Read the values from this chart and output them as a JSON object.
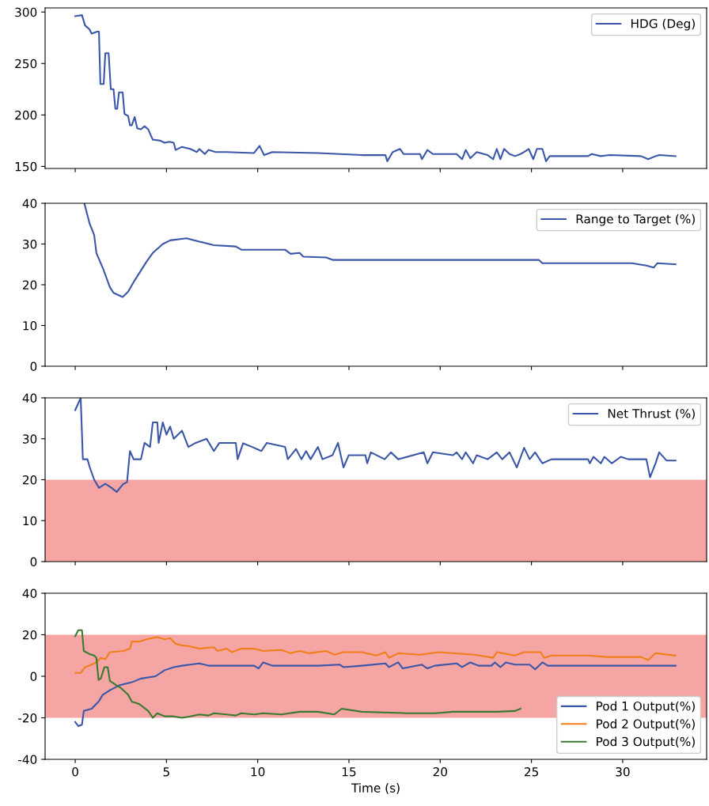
{
  "chart_data": [
    {
      "type": "line",
      "xlim": [
        -1.65,
        34.6
      ],
      "xticks": [
        0,
        5,
        10,
        15,
        20,
        25,
        30
      ],
      "ylim": [
        148,
        304
      ],
      "yticks": [
        150,
        200,
        250,
        300
      ],
      "tick_labels": "y",
      "legend": "top right",
      "grid": false,
      "series": [
        {
          "name": "HDG (Deg)",
          "color": "#3a56a8",
          "x": [
            0,
            0.37,
            0.54,
            0.79,
            0.9,
            1.2,
            1.3,
            1.38,
            1.56,
            1.65,
            1.83,
            1.95,
            2.1,
            2.2,
            2.3,
            2.4,
            2.6,
            2.7,
            2.9,
            3.0,
            3.1,
            3.26,
            3.4,
            3.6,
            3.8,
            4.0,
            4.25,
            4.67,
            4.9,
            5.16,
            5.4,
            5.5,
            5.85,
            6.3,
            6.67,
            6.8,
            7.1,
            7.3,
            7.7,
            8.3,
            9.8,
            10.1,
            10.35,
            10.8,
            13.3,
            15.7,
            17.0,
            17.1,
            17.4,
            17.8,
            18.0,
            18.9,
            19.0,
            19.3,
            19.6,
            20.9,
            21.2,
            21.4,
            21.65,
            22.0,
            22.6,
            22.9,
            23.1,
            23.3,
            23.5,
            23.8,
            24.1,
            24.4,
            24.6,
            24.85,
            25.1,
            25.3,
            25.6,
            25.8,
            26.0,
            28.1,
            28.3,
            28.8,
            29.3,
            31.0,
            31.4,
            31.8,
            32.0,
            32.9
          ],
          "values": [
            296,
            297,
            287,
            283,
            279,
            281,
            281,
            230,
            230,
            260,
            260,
            225,
            225,
            206,
            206,
            222,
            222,
            201,
            199,
            190,
            190,
            198,
            187,
            186,
            189,
            186,
            176,
            175,
            173,
            174,
            173,
            166,
            169,
            167,
            164,
            167,
            162,
            166,
            164,
            164,
            163,
            170,
            161,
            164,
            163,
            161,
            161,
            155,
            164,
            167,
            162,
            162,
            157,
            166,
            162,
            162,
            157,
            166,
            158,
            164,
            161,
            157,
            167,
            157,
            167,
            162,
            160,
            162,
            164,
            167,
            157,
            167,
            167,
            155,
            160,
            160,
            162,
            160,
            161,
            160,
            157,
            160,
            161,
            160
          ]
        }
      ]
    },
    {
      "type": "line",
      "xlim": [
        -1.65,
        34.6
      ],
      "xticks": [
        0,
        5,
        10,
        15,
        20,
        25,
        30
      ],
      "ylim": [
        0,
        40
      ],
      "yticks": [
        0,
        10,
        20,
        30,
        40
      ],
      "tick_labels": "y",
      "legend": "top right",
      "grid": false,
      "series": [
        {
          "name": "Range to Target (%)",
          "color": "#3a56a8",
          "x": [
            0.5,
            0.79,
            1.04,
            1.16,
            1.53,
            1.9,
            2.1,
            2.6,
            2.9,
            3.26,
            3.9,
            4.25,
            4.8,
            5.2,
            6.1,
            6.8,
            7.6,
            8.8,
            9.1,
            11.5,
            11.8,
            12.3,
            12.5,
            13.75,
            14.1,
            15.7,
            18.2,
            20.7,
            23.1,
            25.4,
            25.6,
            28.1,
            30.5,
            31.3,
            31.7,
            31.9,
            32.9
          ],
          "values": [
            40,
            35,
            32.2,
            27.8,
            23.9,
            19.4,
            18,
            17,
            18.3,
            21.1,
            25.6,
            27.8,
            30,
            30.9,
            31.4,
            30.6,
            29.7,
            29.4,
            28.6,
            28.6,
            27.6,
            27.8,
            26.9,
            26.7,
            26.1,
            26.1,
            26.1,
            26.1,
            26.1,
            26.1,
            25.3,
            25.3,
            25.3,
            24.7,
            24.2,
            25.3,
            25
          ]
        }
      ]
    },
    {
      "type": "line",
      "xlim": [
        -1.65,
        34.6
      ],
      "xticks": [
        0,
        5,
        10,
        15,
        20,
        25,
        30
      ],
      "ylim": [
        0,
        40
      ],
      "yticks": [
        0,
        10,
        20,
        30,
        40
      ],
      "tick_labels": "y",
      "legend": "top right",
      "grid": false,
      "bands": [
        {
          "axis": "y",
          "from": 0,
          "to": 20,
          "color": "#f6a5a5"
        }
      ],
      "series": [
        {
          "name": "Net Thrust (%)",
          "color": "#3a56a8",
          "x": [
            0,
            0.3,
            0.42,
            0.67,
            0.8,
            1.04,
            1.3,
            1.65,
            2.0,
            2.27,
            2.64,
            2.84,
            3.0,
            3.2,
            3.6,
            3.8,
            4.1,
            4.25,
            4.5,
            4.57,
            4.8,
            5.0,
            5.2,
            5.4,
            5.85,
            6.2,
            6.6,
            7.2,
            7.6,
            7.9,
            8.8,
            8.9,
            9.2,
            9.7,
            10.2,
            10.5,
            11.5,
            11.65,
            12.1,
            12.4,
            12.65,
            12.9,
            13.3,
            13.55,
            14.1,
            14.4,
            14.7,
            14.99,
            15.9,
            16.0,
            16.2,
            16.96,
            17.3,
            17.7,
            19.1,
            19.3,
            19.6,
            20.7,
            20.9,
            21.2,
            21.4,
            21.8,
            22.0,
            22.6,
            23.1,
            23.4,
            23.8,
            24.2,
            24.6,
            24.9,
            25.2,
            25.6,
            26.1,
            28.1,
            28.2,
            28.4,
            28.8,
            29.0,
            29.4,
            29.9,
            30.3,
            31.3,
            31.5,
            31.8,
            32.0,
            32.4,
            32.9
          ],
          "values": [
            37,
            40,
            25,
            25,
            23,
            20,
            18,
            19,
            18,
            17,
            19,
            19.4,
            27,
            25,
            25,
            29,
            28,
            34,
            34,
            29,
            34,
            31,
            33,
            30,
            32,
            28,
            29,
            30,
            27,
            29,
            29,
            25,
            28.9,
            28,
            27,
            29,
            28,
            25,
            27.5,
            25,
            27,
            25,
            28,
            25,
            26,
            29,
            23,
            26,
            26,
            24,
            26.7,
            25,
            26.7,
            25,
            26.7,
            24,
            26.7,
            26,
            26.7,
            25,
            26.7,
            24,
            26,
            25,
            26.7,
            25,
            26.7,
            23,
            27.8,
            25,
            26.7,
            24,
            25,
            25,
            24,
            25.6,
            24,
            25.6,
            24,
            25.6,
            25,
            25,
            20.6,
            24,
            26.7,
            24.7,
            24.7
          ]
        }
      ]
    },
    {
      "type": "line",
      "xlim": [
        -1.65,
        34.6
      ],
      "xticks": [
        0,
        5,
        10,
        15,
        20,
        25,
        30
      ],
      "ylim": [
        -40,
        40
      ],
      "yticks": [
        -40,
        -20,
        0,
        20,
        40
      ],
      "xlabel": "Time (s)",
      "legend": "bottom right",
      "grid": false,
      "bands": [
        {
          "axis": "y",
          "from": -20,
          "to": 20,
          "color": "#f6a5a5"
        }
      ],
      "series": [
        {
          "name": "Pod 1 Output(%)",
          "color": "#3a56a8",
          "x": [
            0,
            0.17,
            0.37,
            0.47,
            0.9,
            1.3,
            1.5,
            1.9,
            2.4,
            3.1,
            3.6,
            4.4,
            4.9,
            5.4,
            5.85,
            6.3,
            6.8,
            7.3,
            8.3,
            9.8,
            10.05,
            10.3,
            10.8,
            13.3,
            14.5,
            14.7,
            15.7,
            17.0,
            17.2,
            17.7,
            17.95,
            19.0,
            19.3,
            19.7,
            20.9,
            21.2,
            21.65,
            22.1,
            22.8,
            23.0,
            23.3,
            23.6,
            24.1,
            24.9,
            25.2,
            25.6,
            25.9,
            32.9
          ],
          "values": [
            -22,
            -24,
            -23.3,
            -16.7,
            -15.6,
            -12,
            -9,
            -6.7,
            -4.4,
            -2.9,
            -1.1,
            0,
            2.9,
            4.4,
            5.1,
            5.6,
            6.2,
            5.1,
            5.1,
            5.1,
            3.8,
            6.7,
            5.1,
            5.1,
            5.6,
            4.4,
            5.1,
            6.2,
            4.4,
            6.7,
            3.8,
            5.6,
            3.8,
            5.1,
            6.2,
            4.4,
            6.7,
            5.1,
            5.1,
            6.7,
            4.4,
            6.7,
            5.6,
            5.6,
            3.3,
            6.7,
            5.1,
            5.1
          ]
        },
        {
          "name": "Pod 2 Output(%)",
          "color": "#f07f1a",
          "x": [
            0,
            0.3,
            0.54,
            0.9,
            1.16,
            1.4,
            1.65,
            1.9,
            2.64,
            3.0,
            3.1,
            3.5,
            3.9,
            4.5,
            4.9,
            5.2,
            5.5,
            5.85,
            6.3,
            6.8,
            7.6,
            7.8,
            8.3,
            8.6,
            9.1,
            9.8,
            10.3,
            11.3,
            11.8,
            12.3,
            12.8,
            13.75,
            14.2,
            14.7,
            15.7,
            16.5,
            17.0,
            17.2,
            17.7,
            18.9,
            19.9,
            21.9,
            22.9,
            23.1,
            24.1,
            24.6,
            25.5,
            25.7,
            26.1,
            28.1,
            29.1,
            31.0,
            31.4,
            31.8,
            32.9
          ],
          "values": [
            1.6,
            1.6,
            4.4,
            5.6,
            6.7,
            8.9,
            8.2,
            11.6,
            12.2,
            13.3,
            16.7,
            16.7,
            17.8,
            18.9,
            17.8,
            18.4,
            15.6,
            14.9,
            14.4,
            13.3,
            14,
            12.2,
            13.3,
            11.6,
            13.3,
            13.3,
            12.2,
            12.7,
            11.1,
            12.2,
            11.1,
            12.2,
            10.4,
            11.6,
            11.6,
            10,
            11.6,
            8.9,
            11.1,
            10.4,
            11.6,
            10.4,
            8.9,
            11.6,
            10,
            11.6,
            11.6,
            8.9,
            10,
            10,
            9.3,
            9.3,
            7.8,
            11.1,
            10
          ]
        },
        {
          "name": "Pod 3 Output(%)",
          "color": "#3a7a30",
          "x": [
            0,
            0.17,
            0.37,
            0.47,
            0.79,
            1.04,
            1.16,
            1.28,
            1.4,
            1.6,
            1.78,
            1.9,
            2.27,
            2.5,
            2.9,
            3.1,
            3.5,
            4.0,
            4.25,
            4.5,
            4.9,
            5.4,
            5.85,
            6.3,
            6.8,
            7.3,
            7.6,
            8.3,
            8.8,
            9.1,
            9.8,
            10.3,
            11.3,
            12.3,
            13.3,
            14.2,
            14.6,
            15.7,
            18.2,
            19.7,
            20.7,
            22.1,
            23.1,
            24.1,
            24.4
          ],
          "values": [
            19.3,
            22.2,
            22.2,
            12.2,
            10.7,
            10,
            8.9,
            -1.8,
            -1.1,
            4.4,
            4.4,
            -2.2,
            -4.4,
            -5.6,
            -8.9,
            -12.2,
            -13.3,
            -16.7,
            -20,
            -17.8,
            -19.3,
            -19.3,
            -20,
            -19.3,
            -18.4,
            -18.9,
            -17.8,
            -18.4,
            -18.9,
            -17.8,
            -18.4,
            -17.8,
            -18.4,
            -17.1,
            -17.1,
            -18.4,
            -15.6,
            -17.1,
            -17.8,
            -17.8,
            -17.1,
            -17.1,
            -17.1,
            -16.7,
            -15.6
          ]
        }
      ]
    }
  ]
}
